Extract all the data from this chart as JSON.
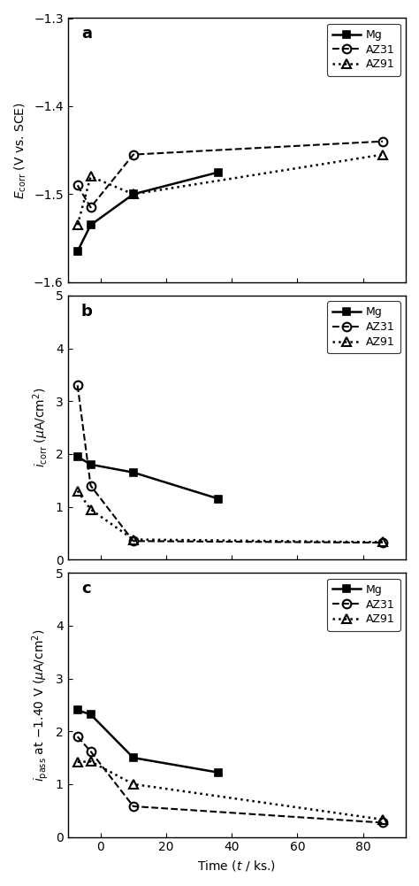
{
  "panel_a": {
    "label": "a",
    "ylabel": "$E_{\\mathrm{corr}}$ (V vs. SCE)",
    "ylim": [
      -1.6,
      -1.3
    ],
    "yticks": [
      -1.6,
      -1.5,
      -1.4,
      -1.3
    ],
    "Mg": {
      "x": [
        -7,
        -3,
        10,
        36
      ],
      "y": [
        -1.565,
        -1.535,
        -1.5,
        -1.475
      ],
      "linestyle": "-",
      "marker": "s",
      "color": "black",
      "label": "Mg",
      "linewidth": 1.8,
      "markersize": 6,
      "fillstyle": "full"
    },
    "AZ31": {
      "x": [
        -7,
        -3,
        10,
        86
      ],
      "y": [
        -1.49,
        -1.515,
        -1.455,
        -1.44
      ],
      "linestyle": "--",
      "marker": "o",
      "color": "black",
      "label": "AZ31",
      "linewidth": 1.5,
      "markersize": 7,
      "fillstyle": "none"
    },
    "AZ91": {
      "x": [
        -7,
        -3,
        10,
        86
      ],
      "y": [
        -1.535,
        -1.48,
        -1.5,
        -1.455
      ],
      "linestyle": ":",
      "marker": "^",
      "color": "black",
      "label": "AZ91",
      "linewidth": 1.8,
      "markersize": 7,
      "fillstyle": "none"
    }
  },
  "panel_b": {
    "label": "b",
    "ylabel": "$i_{\\mathrm{corr}}$ ($\\mu$A/cm$^2$)",
    "ylim": [
      0,
      5
    ],
    "yticks": [
      0,
      1,
      2,
      3,
      4,
      5
    ],
    "Mg": {
      "x": [
        -7,
        -3,
        10,
        36
      ],
      "y": [
        1.95,
        1.8,
        1.65,
        1.15
      ],
      "linestyle": "-",
      "marker": "s",
      "color": "black",
      "label": "Mg",
      "linewidth": 1.8,
      "markersize": 6,
      "fillstyle": "full"
    },
    "AZ31": {
      "x": [
        -7,
        -3,
        10,
        86
      ],
      "y": [
        3.3,
        1.4,
        0.35,
        0.32
      ],
      "linestyle": "--",
      "marker": "o",
      "color": "black",
      "label": "AZ31",
      "linewidth": 1.5,
      "markersize": 7,
      "fillstyle": "none"
    },
    "AZ91": {
      "x": [
        -7,
        -3,
        10,
        86
      ],
      "y": [
        1.3,
        0.95,
        0.38,
        0.33
      ],
      "linestyle": ":",
      "marker": "^",
      "color": "black",
      "label": "AZ91",
      "linewidth": 1.8,
      "markersize": 7,
      "fillstyle": "none"
    }
  },
  "panel_c": {
    "label": "c",
    "ylabel": "$i_{\\mathrm{pass}}$ at $-$1.40 V ($\\mu$A/cm$^2$)",
    "ylim": [
      0,
      5
    ],
    "yticks": [
      0,
      1,
      2,
      3,
      4,
      5
    ],
    "xlabel": "Time ($t$ / ks.)",
    "Mg": {
      "x": [
        -7,
        -3,
        10,
        36
      ],
      "y": [
        2.4,
        2.32,
        1.5,
        1.22
      ],
      "linestyle": "-",
      "marker": "s",
      "color": "black",
      "label": "Mg",
      "linewidth": 1.8,
      "markersize": 6,
      "fillstyle": "full"
    },
    "AZ31": {
      "x": [
        -7,
        -3,
        10,
        86
      ],
      "y": [
        1.9,
        1.62,
        0.58,
        0.27
      ],
      "linestyle": "--",
      "marker": "o",
      "color": "black",
      "label": "AZ31",
      "linewidth": 1.5,
      "markersize": 7,
      "fillstyle": "none"
    },
    "AZ91": {
      "x": [
        -7,
        -3,
        10,
        86
      ],
      "y": [
        1.42,
        1.43,
        1.0,
        0.33
      ],
      "linestyle": ":",
      "marker": "^",
      "color": "black",
      "label": "AZ91",
      "linewidth": 1.8,
      "markersize": 7,
      "fillstyle": "none"
    }
  },
  "xlim": [
    -10,
    93
  ],
  "xticks": [
    0,
    20,
    40,
    60,
    80
  ],
  "background_color": "#ffffff",
  "legend_fontsize": 9,
  "label_fontsize": 10,
  "tick_fontsize": 10
}
